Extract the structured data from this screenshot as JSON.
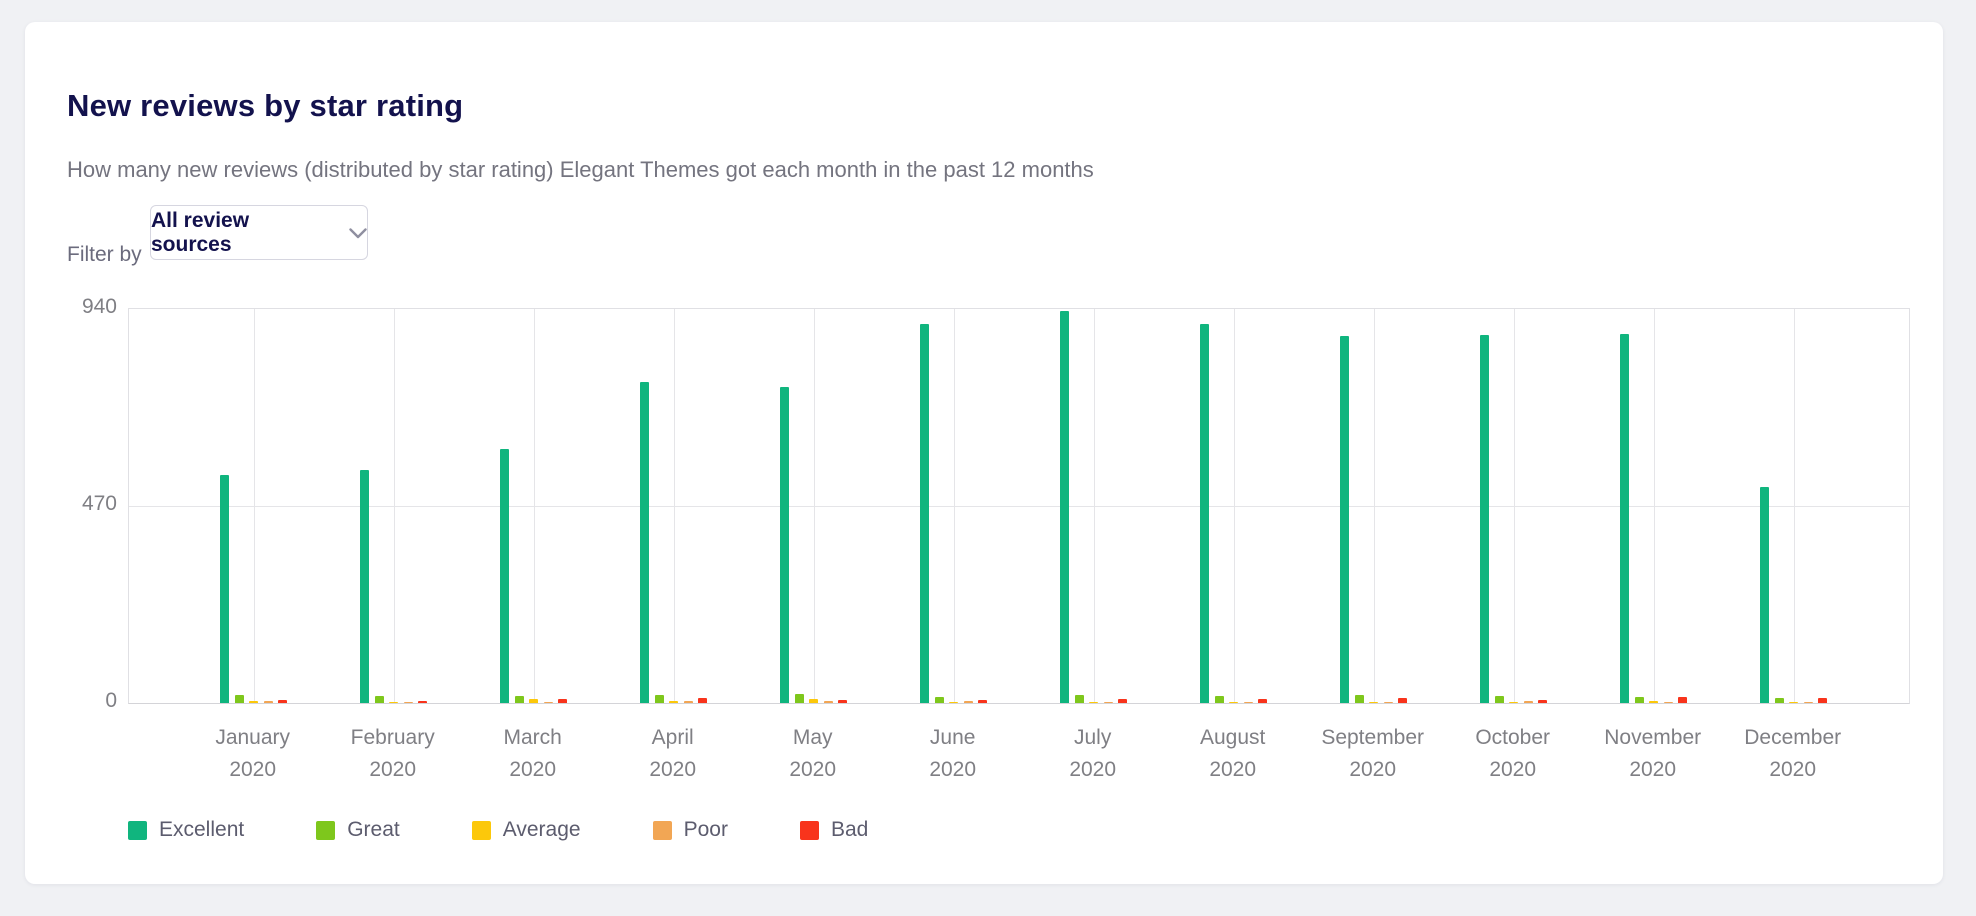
{
  "page": {
    "background_color": "#f0f1f4",
    "card_color": "#ffffff"
  },
  "header": {
    "title": "New reviews by star rating",
    "subtitle": "How many new reviews (distributed by star rating) Elegant Themes got each month in the past 12 months"
  },
  "filter": {
    "label": "Filter by",
    "selected_value": "All review sources",
    "chevron_icon": "chevron-down",
    "chevron_color": "#8f8fa0"
  },
  "chart_data": {
    "type": "bar",
    "title": "New reviews by star rating",
    "categories": [
      {
        "month": "January",
        "year": "2020"
      },
      {
        "month": "February",
        "year": "2020"
      },
      {
        "month": "March",
        "year": "2020"
      },
      {
        "month": "April",
        "year": "2020"
      },
      {
        "month": "May",
        "year": "2020"
      },
      {
        "month": "June",
        "year": "2020"
      },
      {
        "month": "July",
        "year": "2020"
      },
      {
        "month": "August",
        "year": "2020"
      },
      {
        "month": "September",
        "year": "2020"
      },
      {
        "month": "October",
        "year": "2020"
      },
      {
        "month": "November",
        "year": "2020"
      },
      {
        "month": "December",
        "year": "2020"
      }
    ],
    "series": [
      {
        "name": "Excellent",
        "color": "#10b57e",
        "values": [
          545,
          555,
          605,
          765,
          755,
          905,
          935,
          905,
          875,
          878,
          880,
          515
        ]
      },
      {
        "name": "Great",
        "color": "#7ec71c",
        "values": [
          20,
          17,
          17,
          20,
          22,
          15,
          18,
          17,
          20,
          16,
          14,
          12
        ]
      },
      {
        "name": "Average",
        "color": "#fcc80a",
        "values": [
          6,
          3,
          9,
          4,
          9,
          3,
          2,
          2,
          3,
          2,
          4,
          3
        ]
      },
      {
        "name": "Poor",
        "color": "#f2a654",
        "values": [
          4,
          3,
          3,
          4,
          5,
          4,
          3,
          2,
          3,
          4,
          3,
          3
        ]
      },
      {
        "name": "Bad",
        "color": "#f8341c",
        "values": [
          8,
          5,
          10,
          12,
          7,
          8,
          9,
          10,
          12,
          7,
          15,
          11
        ]
      }
    ],
    "ylim": [
      0,
      940
    ],
    "yticks": [
      0,
      470,
      940
    ],
    "xlabel": "",
    "ylabel": "",
    "grid": "both",
    "legend_position": "bottom"
  }
}
